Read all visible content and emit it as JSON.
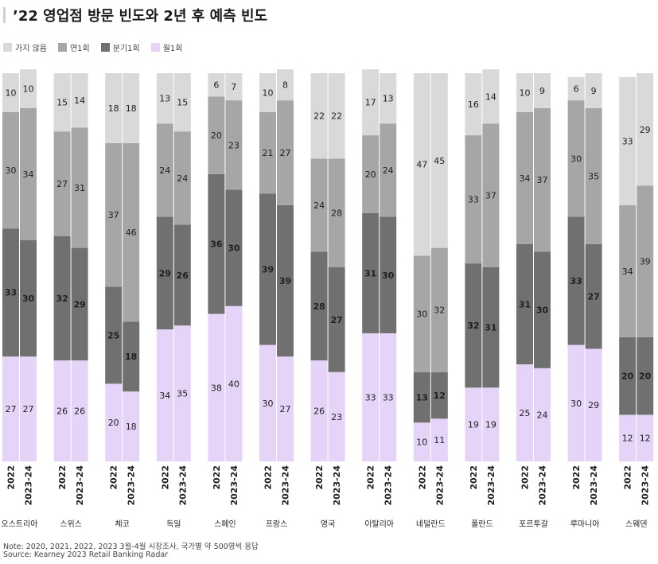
{
  "title": "’22 영업점 방문 빈도와 2년 후 예측 빈도",
  "legend": [
    {
      "label": "가지 않음",
      "color": "#d9d9d9"
    },
    {
      "label": "연1회",
      "color": "#a6a6a6"
    },
    {
      "label": "분기1회",
      "color": "#707070"
    },
    {
      "label": "월1회",
      "color": "#e5d4f7"
    }
  ],
  "note": "Note: 2020, 2021, 2022, 2023 3월-4월 시장조사, 국가별 약 500명씩 응답",
  "source": "Source: Kearney 2023 Retail Banking Radar",
  "chart_data": {
    "type": "bar",
    "stacked": true,
    "orientation": "vertical",
    "bar_labels": [
      "2022",
      "2023-24"
    ],
    "categories": [
      "오스트리아",
      "스위스",
      "체코",
      "독일",
      "스페인",
      "프랑스",
      "영국",
      "이탈리아",
      "네덜란드",
      "폴란드",
      "포르투갈",
      "루마니아",
      "스웨덴"
    ],
    "series": [
      {
        "name": "월1회",
        "color": "#e5d4f7",
        "values": [
          [
            27,
            27
          ],
          [
            26,
            26
          ],
          [
            20,
            18
          ],
          [
            34,
            35
          ],
          [
            38,
            40
          ],
          [
            30,
            27
          ],
          [
            26,
            23
          ],
          [
            33,
            33
          ],
          [
            10,
            11
          ],
          [
            19,
            19
          ],
          [
            25,
            24
          ],
          [
            30,
            29
          ],
          [
            12,
            12
          ]
        ]
      },
      {
        "name": "분기1회",
        "color": "#707070",
        "values": [
          [
            33,
            30
          ],
          [
            32,
            29
          ],
          [
            25,
            18
          ],
          [
            29,
            26
          ],
          [
            36,
            30
          ],
          [
            39,
            39
          ],
          [
            28,
            27
          ],
          [
            31,
            30
          ],
          [
            13,
            12
          ],
          [
            32,
            31
          ],
          [
            31,
            30
          ],
          [
            33,
            27
          ],
          [
            20,
            20
          ]
        ]
      },
      {
        "name": "연1회",
        "color": "#a6a6a6",
        "values": [
          [
            30,
            34
          ],
          [
            27,
            31
          ],
          [
            37,
            46
          ],
          [
            24,
            24
          ],
          [
            20,
            23
          ],
          [
            21,
            27
          ],
          [
            24,
            28
          ],
          [
            20,
            24
          ],
          [
            30,
            32
          ],
          [
            33,
            37
          ],
          [
            34,
            37
          ],
          [
            30,
            35
          ],
          [
            34,
            39
          ]
        ]
      },
      {
        "name": "가지 않음",
        "color": "#d9d9d9",
        "values": [
          [
            10,
            10
          ],
          [
            15,
            14
          ],
          [
            18,
            18
          ],
          [
            13,
            15
          ],
          [
            6,
            7
          ],
          [
            10,
            8
          ],
          [
            22,
            22
          ],
          [
            17,
            13
          ],
          [
            47,
            45
          ],
          [
            16,
            14
          ],
          [
            10,
            9
          ],
          [
            6,
            9
          ],
          [
            33,
            29
          ]
        ]
      }
    ],
    "ylim": [
      0,
      100
    ],
    "grid": false,
    "legend_position": "top-left"
  }
}
